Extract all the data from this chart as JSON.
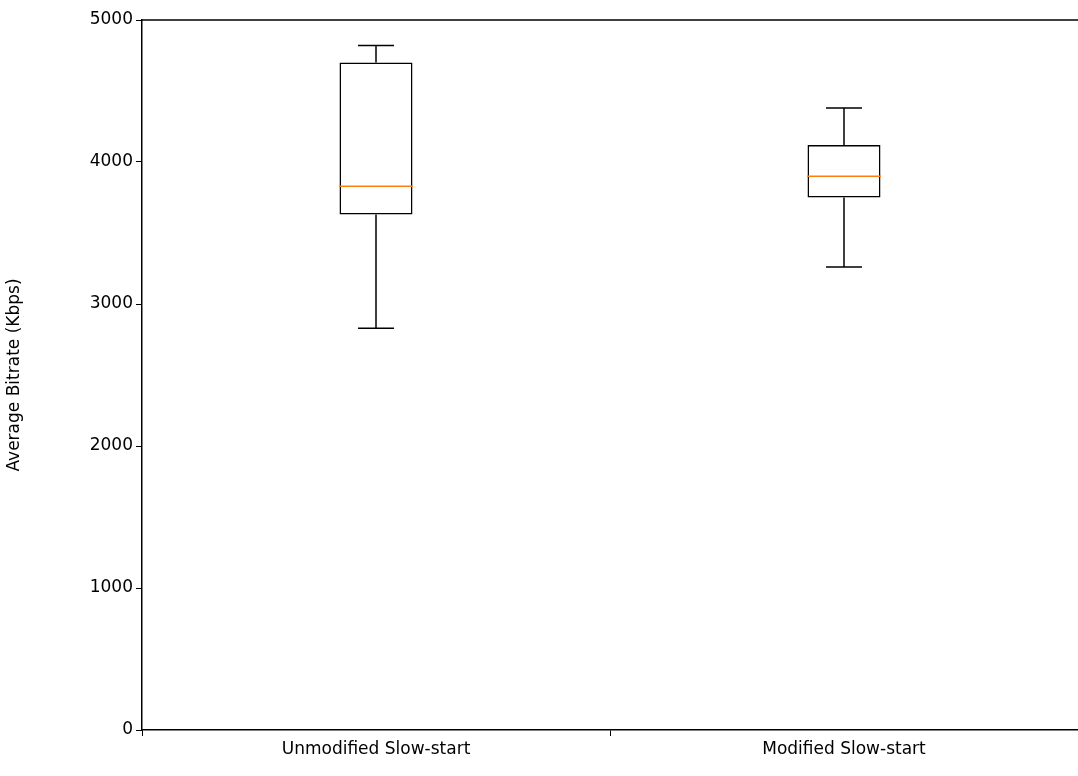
{
  "chart_data": {
    "type": "box",
    "ylabel": "Average Bitrate (Kbps)",
    "categories": [
      "Unmodified Slow-start",
      "Modified Slow-start"
    ],
    "boxes": [
      {
        "low": 2830,
        "q1": 3630,
        "median": 3830,
        "q3": 4700,
        "high": 4820
      },
      {
        "low": 3260,
        "q1": 3750,
        "median": 3900,
        "q3": 4120,
        "high": 4380
      }
    ],
    "ylim": [
      0,
      5000
    ],
    "yticks": [
      0,
      1000,
      2000,
      3000,
      4000,
      5000
    ]
  }
}
